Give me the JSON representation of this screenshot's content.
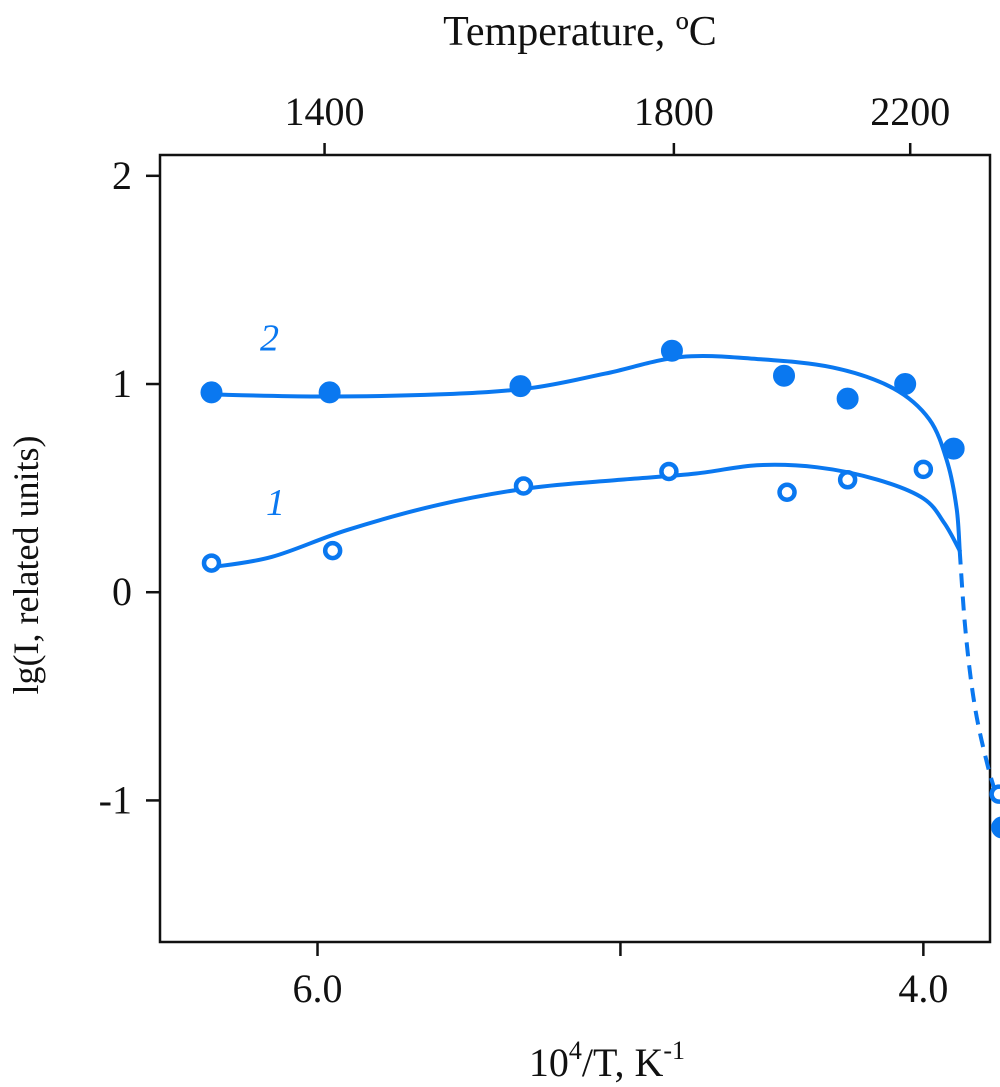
{
  "chart_data": {
    "type": "scatter",
    "title": "",
    "xlabel_base": "10",
    "xlabel_exp": "4",
    "xlabel_mid": "/T, K",
    "xlabel_unit_exp": "-1",
    "ylabel": "lg(I, related units)",
    "top_axis_label": "Temperature, ºC",
    "x_reversed": true,
    "xlim": [
      6.52,
      3.78
    ],
    "ylim": [
      -1.68,
      2.1
    ],
    "grid": false,
    "legend": "none",
    "x_ticks": [
      {
        "value": 6.0,
        "label": "6.0"
      },
      {
        "value": 5.0,
        "label": ""
      },
      {
        "value": 4.0,
        "label": "4.0"
      }
    ],
    "y_ticks": [
      {
        "value": 2,
        "label": "2"
      },
      {
        "value": 1,
        "label": "1"
      },
      {
        "value": 0,
        "label": "0"
      },
      {
        "value": -1,
        "label": "-1"
      }
    ],
    "top_ticks": [
      {
        "value": 1400,
        "label": "1400"
      },
      {
        "value": 1800,
        "label": "1800"
      },
      {
        "value": 2200,
        "label": "2200"
      }
    ],
    "curve_labels": [
      {
        "text": "2",
        "series": 1,
        "x": 6.19,
        "y": 1.16
      },
      {
        "text": "1",
        "series": 0,
        "x": 6.17,
        "y": 0.37
      }
    ],
    "series": [
      {
        "marker": "open-circle",
        "color": "#0a78f0",
        "points": [
          {
            "x": 6.35,
            "y": 0.14
          },
          {
            "x": 5.95,
            "y": 0.2
          },
          {
            "x": 5.32,
            "y": 0.51
          },
          {
            "x": 4.84,
            "y": 0.58
          },
          {
            "x": 4.45,
            "y": 0.48
          },
          {
            "x": 4.25,
            "y": 0.54
          },
          {
            "x": 4.0,
            "y": 0.59
          },
          {
            "x": 3.75,
            "y": -0.97
          }
        ],
        "fit_solid": [
          {
            "x": 6.35,
            "y": 0.12
          },
          {
            "x": 6.15,
            "y": 0.17
          },
          {
            "x": 5.9,
            "y": 0.3
          },
          {
            "x": 5.6,
            "y": 0.42
          },
          {
            "x": 5.3,
            "y": 0.5
          },
          {
            "x": 5.0,
            "y": 0.54
          },
          {
            "x": 4.75,
            "y": 0.57
          },
          {
            "x": 4.55,
            "y": 0.61
          },
          {
            "x": 4.35,
            "y": 0.6
          },
          {
            "x": 4.15,
            "y": 0.54
          },
          {
            "x": 4.0,
            "y": 0.45
          },
          {
            "x": 3.93,
            "y": 0.33
          },
          {
            "x": 3.88,
            "y": 0.2
          }
        ]
      },
      {
        "marker": "filled-circle",
        "color": "#0a78f0",
        "points": [
          {
            "x": 6.35,
            "y": 0.96
          },
          {
            "x": 5.96,
            "y": 0.96
          },
          {
            "x": 5.33,
            "y": 0.99
          },
          {
            "x": 4.83,
            "y": 1.16
          },
          {
            "x": 4.46,
            "y": 1.04
          },
          {
            "x": 4.25,
            "y": 0.93
          },
          {
            "x": 4.06,
            "y": 1.0
          },
          {
            "x": 3.9,
            "y": 0.69
          },
          {
            "x": 3.74,
            "y": -1.13
          }
        ],
        "fit_solid": [
          {
            "x": 6.35,
            "y": 0.95
          },
          {
            "x": 6.0,
            "y": 0.94
          },
          {
            "x": 5.6,
            "y": 0.95
          },
          {
            "x": 5.3,
            "y": 0.98
          },
          {
            "x": 5.05,
            "y": 1.05
          },
          {
            "x": 4.8,
            "y": 1.13
          },
          {
            "x": 4.55,
            "y": 1.12
          },
          {
            "x": 4.3,
            "y": 1.08
          },
          {
            "x": 4.1,
            "y": 0.98
          },
          {
            "x": 3.98,
            "y": 0.83
          },
          {
            "x": 3.92,
            "y": 0.62
          },
          {
            "x": 3.89,
            "y": 0.4
          },
          {
            "x": 3.88,
            "y": 0.2
          }
        ]
      }
    ],
    "extrapolation_dashed": [
      {
        "x": 3.88,
        "y": 0.2
      },
      {
        "x": 3.86,
        "y": -0.2
      },
      {
        "x": 3.83,
        "y": -0.55
      },
      {
        "x": 3.79,
        "y": -0.82
      },
      {
        "x": 3.76,
        "y": -0.97
      }
    ],
    "extrapolation_tail": [
      {
        "x": 3.74,
        "y": -0.97
      },
      {
        "x": 3.74,
        "y": -1.25
      }
    ]
  }
}
